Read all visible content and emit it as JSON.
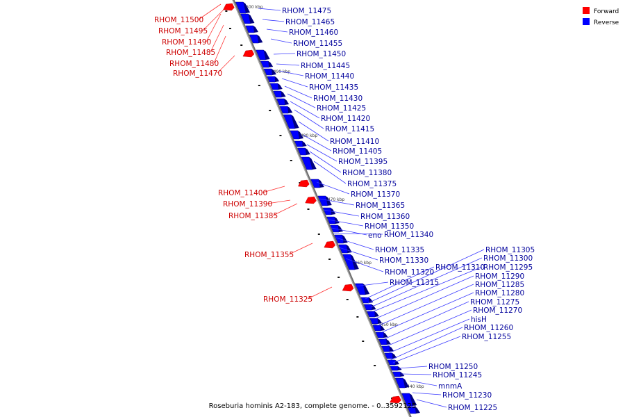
{
  "caption": "Roseburia hominis A2-183, complete genome. - 0..3592125",
  "legend": [
    {
      "label": "Forward",
      "color": "#ff0000"
    },
    {
      "label": "Reverse",
      "color": "#0000ff"
    }
  ],
  "colors": {
    "forward": "#ff0000",
    "reverse": "#0000ff",
    "backbone": "#808080"
  },
  "ticks": [
    "2500 kbp",
    "2490 kbp",
    "2480 kbp",
    "2470 kbp",
    "2460 kbp",
    "2450 kbp",
    "2440 kbp"
  ],
  "forward_labels": [
    "RHOM_11500",
    "RHOM_11495",
    "RHOM_11490",
    "RHOM_11485",
    "RHOM_11480",
    "RHOM_11470",
    "RHOM_11400",
    "RHOM_11390",
    "RHOM_11385",
    "RHOM_11355",
    "RHOM_11325"
  ],
  "reverse_labels": [
    "RHOM_11475",
    "RHOM_11465",
    "RHOM_11460",
    "RHOM_11455",
    "RHOM_11450",
    "RHOM_11445",
    "RHOM_11440",
    "RHOM_11435",
    "RHOM_11430",
    "RHOM_11425",
    "RHOM_11420",
    "RHOM_11415",
    "RHOM_11410",
    "RHOM_11405",
    "RHOM_11395",
    "RHOM_11380",
    "RHOM_11375",
    "RHOM_11370",
    "RHOM_11365",
    "RHOM_11360",
    "RHOM_11350",
    "eno",
    "RHOM_11340",
    "RHOM_11335",
    "RHOM_11330",
    "RHOM_11320",
    "RHOM_11315",
    "RHOM_11310",
    "RHOM_11305",
    "RHOM_11300",
    "RHOM_11295",
    "RHOM_11290",
    "RHOM_11285",
    "RHOM_11280",
    "RHOM_11275",
    "RHOM_11270",
    "hisH",
    "RHOM_11260",
    "RHOM_11255",
    "RHOM_11250",
    "RHOM_11245",
    "mnmA",
    "RHOM_11230",
    "RHOM_11225"
  ]
}
